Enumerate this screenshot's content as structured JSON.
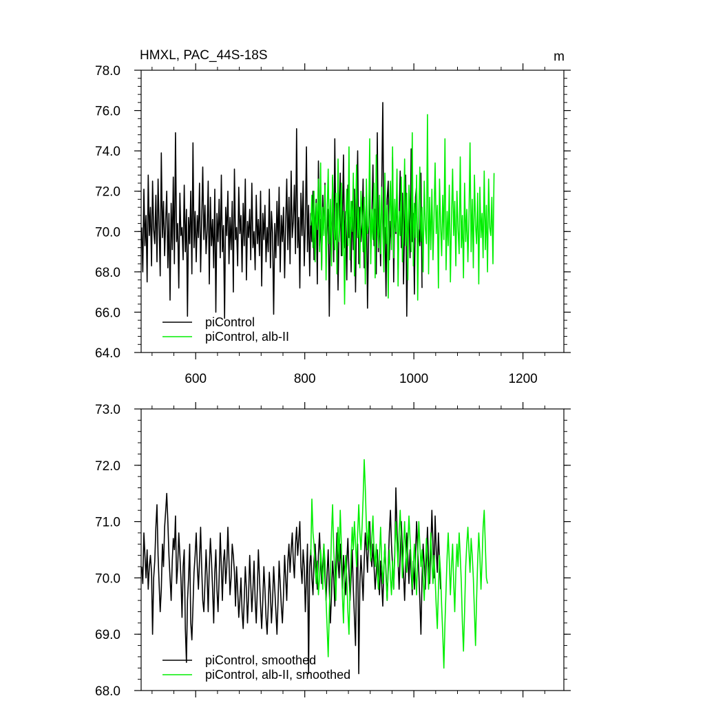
{
  "colors": {
    "piControl": "#000000",
    "albII": "#00ee00",
    "axis": "#000000",
    "background": "#ffffff"
  },
  "panels": [
    {
      "id": "top",
      "title": "HMXL, PAC_44S-18S",
      "units": "m",
      "xlim": [
        500,
        1275
      ],
      "ylim": [
        64,
        78
      ],
      "xticks": [
        {
          "value": 600,
          "label": "600"
        },
        {
          "value": 800,
          "label": "800"
        },
        {
          "value": 1000,
          "label": "1000"
        },
        {
          "value": 1200,
          "label": "1200"
        }
      ],
      "yticks": [
        {
          "value": 64,
          "label": "64.0"
        },
        {
          "value": 66,
          "label": "66.0"
        },
        {
          "value": 68,
          "label": "68.0"
        },
        {
          "value": 70,
          "label": "70.0"
        },
        {
          "value": 72,
          "label": "72.0"
        },
        {
          "value": 74,
          "label": "74.0"
        },
        {
          "value": 76,
          "label": "76.0"
        },
        {
          "value": 78,
          "label": "78.0"
        }
      ],
      "legend": [
        {
          "label": "piControl",
          "series": "piControl"
        },
        {
          "label": "piControl, alb-II",
          "series": "albII"
        }
      ]
    },
    {
      "id": "bottom",
      "title": "",
      "units": "",
      "xlim": [
        500,
        1275
      ],
      "ylim": [
        68,
        73
      ],
      "xticks": [
        {
          "value": 600,
          "label": ""
        },
        {
          "value": 800,
          "label": ""
        },
        {
          "value": 1000,
          "label": ""
        },
        {
          "value": 1200,
          "label": ""
        }
      ],
      "yticks": [
        {
          "value": 68,
          "label": "68.0"
        },
        {
          "value": 69,
          "label": "69.0"
        },
        {
          "value": 70,
          "label": "70.0"
        },
        {
          "value": 71,
          "label": "71.0"
        },
        {
          "value": 72,
          "label": "72.0"
        },
        {
          "value": 73,
          "label": "73.0"
        }
      ],
      "legend": [
        {
          "label": "piControl, smoothed",
          "series": "piControl"
        },
        {
          "label": "piControl, alb-II, smoothed",
          "series": "albII"
        }
      ]
    }
  ],
  "chart_data": [
    {
      "type": "line",
      "title": "HMXL, PAC_44S-18S",
      "units": "m",
      "xlim": [
        500,
        1275
      ],
      "ylim": [
        64,
        78
      ],
      "series": [
        {
          "name": "piControl",
          "x_start": 501,
          "x_step": 2,
          "values": [
            70.2,
            68.0,
            72.1,
            69.3,
            70.8,
            67.5,
            72.8,
            69.8,
            71.2,
            68.3,
            72.5,
            70.1,
            69.4,
            71.8,
            68.5,
            72.6,
            70.3,
            67.8,
            73.9,
            69.7,
            71.5,
            68.8,
            70.6,
            72.0,
            68.2,
            70.9,
            66.6,
            71.4,
            69.1,
            72.7,
            68.4,
            74.9,
            69.5,
            70.4,
            67.2,
            71.9,
            69.8,
            70.2,
            68.6,
            72.3,
            69.0,
            71.1,
            65.8,
            70.7,
            69.4,
            72.0,
            67.9,
            74.4,
            69.2,
            71.0,
            68.5,
            70.8,
            69.7,
            72.4,
            68.0,
            70.5,
            73.2,
            69.6,
            71.3,
            68.9,
            70.1,
            72.5,
            67.4,
            71.7,
            69.3,
            70.6,
            68.2,
            72.1,
            66.0,
            70.9,
            69.5,
            71.6,
            68.7,
            72.8,
            69.0,
            70.3,
            65.7,
            71.2,
            69.8,
            72.0,
            68.4,
            70.7,
            69.1,
            71.5,
            67.0,
            73.1,
            69.6,
            70.2,
            68.3,
            72.2,
            69.9,
            70.8,
            68.0,
            71.4,
            69.3,
            72.6,
            67.6,
            70.5,
            69.7,
            71.1,
            68.6,
            72.4,
            69.2,
            70.0,
            68.1,
            71.8,
            69.4,
            70.6,
            68.8,
            72.0,
            67.3,
            70.9,
            69.6,
            71.3,
            68.5,
            70.2,
            69.0,
            72.1,
            68.2,
            71.0,
            69.9,
            65.9,
            70.4,
            68.7,
            71.5,
            69.3,
            72.2,
            68.0,
            70.8,
            69.5,
            71.2,
            67.7,
            70.3,
            72.6,
            69.1,
            71.7,
            68.4,
            73.0,
            69.7,
            70.5,
            72.3,
            68.9,
            75.1,
            69.2,
            70.7,
            67.2,
            71.9,
            69.8,
            72.5,
            68.3,
            70.4,
            74.2,
            69.0,
            71.3,
            67.8,
            70.9,
            69.5,
            72.0,
            68.6,
            70.1,
            71.6,
            67.4,
            73.5,
            69.3,
            70.6,
            68.1,
            71.8,
            69.9,
            72.4,
            68.7,
            70.2,
            71.1,
            65.8,
            70.8,
            69.4,
            72.7,
            68.5,
            74.6,
            69.6,
            71.4,
            67.1,
            70.5,
            72.9,
            68.8,
            70.3,
            73.8,
            69.2,
            71.0,
            67.6,
            72.3,
            69.7,
            70.7,
            68.0,
            71.5,
            69.1,
            72.1,
            67.0,
            70.9,
            74.0,
            68.4,
            71.2,
            69.5,
            70.4,
            72.6,
            68.2,
            70.0,
            71.8,
            66.2,
            69.8,
            72.4,
            68.9,
            70.6,
            73.3,
            69.3,
            71.1,
            67.9,
            74.9,
            69.0,
            70.8,
            68.3,
            72.0,
            76.4,
            69.6,
            70.2,
            66.8,
            71.6,
            72.5,
            68.6,
            70.5,
            69.4,
            73.7,
            67.5,
            71.3,
            69.9,
            72.2,
            68.1,
            70.7,
            73.0,
            69.2,
            71.9,
            67.4,
            70.3,
            72.8,
            65.8,
            69.7,
            71.4,
            68.7,
            74.1,
            69.5,
            70.9,
            66.9,
            71.7,
            72.3,
            68.4,
            70.1,
            69.3,
            72.9,
            67.2
          ]
        },
        {
          "name": "piControl, alb-II",
          "x_start": 811,
          "x_step": 2,
          "values": [
            70.3,
            71.8,
            69.2,
            72.0,
            68.5,
            71.4,
            70.1,
            72.6,
            69.0,
            73.4,
            68.1,
            71.2,
            69.8,
            72.3,
            67.6,
            70.9,
            73.1,
            69.4,
            71.6,
            68.3,
            72.8,
            70.2,
            69.1,
            71.9,
            67.9,
            73.6,
            69.5,
            70.7,
            72.4,
            68.8,
            71.0,
            66.4,
            70.4,
            72.1,
            69.3,
            74.2,
            68.6,
            71.5,
            70.0,
            72.9,
            67.8,
            70.6,
            73.3,
            69.7,
            71.2,
            68.2,
            72.0,
            70.8,
            69.0,
            71.7,
            67.4,
            72.6,
            69.9,
            70.3,
            74.6,
            68.4,
            71.1,
            69.6,
            72.4,
            67.7,
            73.8,
            70.5,
            69.2,
            71.8,
            68.9,
            72.2,
            70.1,
            68.0,
            72.9,
            69.4,
            71.3,
            66.7,
            70.8,
            72.5,
            69.1,
            74.2,
            68.7,
            71.6,
            70.0,
            73.1,
            67.3,
            71.0,
            69.8,
            72.7,
            68.5,
            70.4,
            73.6,
            69.3,
            71.9,
            67.6,
            72.3,
            70.6,
            69.0,
            74.9,
            68.3,
            71.4,
            69.7,
            72.8,
            66.6,
            70.9,
            73.2,
            69.5,
            71.2,
            68.0,
            72.5,
            70.2,
            69.4,
            75.8,
            67.9,
            71.7,
            69.1,
            72.1,
            68.6,
            70.7,
            73.4,
            69.9,
            71.3,
            67.2,
            72.6,
            70.4,
            68.8,
            71.8,
            69.6,
            74.6,
            68.1,
            71.0,
            69.3,
            72.3,
            67.5,
            70.6,
            73.1,
            69.8,
            71.5,
            68.3,
            72.0,
            70.1,
            68.9,
            73.7,
            69.2,
            70.8,
            67.7,
            72.4,
            69.5,
            71.1,
            68.5,
            70.5,
            74.4,
            69.0,
            71.6,
            68.2,
            72.8,
            70.3,
            69.4,
            71.9,
            67.4,
            72.2,
            69.7,
            70.9,
            68.7,
            73.0,
            69.1,
            71.3,
            68.0,
            72.6,
            70.2,
            69.8,
            71.7,
            68.4,
            72.9
          ]
        }
      ]
    },
    {
      "type": "line",
      "title": "",
      "xlim": [
        500,
        1275
      ],
      "ylim": [
        68,
        73
      ],
      "series": [
        {
          "name": "piControl, smoothed",
          "x_start": 501,
          "x_step": 2,
          "values": [
            70.2,
            69.9,
            70.8,
            70.4,
            70.0,
            70.5,
            69.8,
            70.2,
            70.4,
            70.1,
            69.0,
            70.0,
            70.3,
            70.9,
            71.3,
            70.4,
            69.9,
            69.4,
            69.8,
            70.6,
            70.2,
            70.9,
            71.2,
            71.5,
            71.0,
            70.4,
            70.0,
            69.6,
            70.3,
            70.7,
            70.5,
            71.1,
            69.9,
            70.2,
            70.8,
            70.4,
            70.0,
            69.3,
            70.2,
            70.5,
            69.1,
            68.5,
            69.6,
            70.0,
            70.6,
            69.2,
            68.9,
            69.5,
            70.1,
            70.4,
            70.8,
            70.2,
            69.8,
            70.3,
            70.9,
            70.2,
            69.6,
            69.4,
            69.9,
            70.5,
            70.0,
            69.4,
            70.2,
            70.7,
            70.3,
            69.8,
            69.2,
            70.1,
            70.5,
            69.8,
            69.4,
            70.0,
            70.8,
            70.2,
            69.6,
            70.3,
            70.5,
            69.9,
            70.2,
            70.9,
            70.3,
            69.7,
            70.0,
            70.6,
            70.4,
            70.1,
            69.5,
            70.2,
            69.8,
            69.3,
            69.6,
            70.0,
            69.4,
            69.1,
            69.6,
            70.2,
            69.8,
            69.2,
            69.7,
            70.4,
            69.9,
            69.4,
            69.8,
            70.3,
            69.6,
            69.2,
            69.8,
            70.5,
            70.0,
            69.5,
            69.1,
            69.6,
            70.2,
            69.8,
            69.3,
            69.0,
            69.5,
            70.1,
            69.7,
            69.2,
            69.6,
            70.2,
            69.8,
            69.4,
            69.0,
            69.6,
            70.3,
            69.9,
            69.5,
            69.2,
            69.7,
            70.4,
            70.0,
            69.6,
            70.3,
            70.6,
            70.1,
            70.5,
            70.8,
            70.3,
            70.0,
            70.6,
            70.9,
            70.4,
            70.7,
            71.0,
            70.2,
            69.9,
            70.5,
            70.2,
            69.4,
            70.0,
            70.6,
            68.3,
            70.2,
            70.5,
            70.0,
            69.7,
            70.3,
            70.6,
            70.2,
            69.8,
            70.4,
            70.8,
            70.3,
            69.9,
            70.2,
            70.6,
            70.0,
            69.6,
            70.1,
            70.5,
            69.8,
            69.2,
            69.7,
            70.3,
            70.0,
            69.5,
            70.2,
            70.8,
            70.3,
            70.0,
            70.6,
            70.2,
            69.8,
            70.4,
            70.0,
            69.7,
            70.3,
            70.7,
            70.1,
            69.6,
            70.0,
            70.5,
            69.8,
            69.3,
            68.8,
            70.2,
            70.6,
            68.3,
            69.9,
            70.4,
            70.0,
            69.6,
            70.3,
            70.8,
            70.5,
            70.1,
            70.7,
            71.0,
            70.4,
            70.2,
            70.6,
            70.2,
            69.8,
            70.1,
            70.5,
            70.0,
            69.7,
            70.3,
            69.9,
            69.5,
            70.2,
            70.6,
            70.1,
            69.6,
            70.2,
            70.8,
            71.2,
            70.6,
            70.2,
            69.8,
            70.4,
            71.6,
            70.9,
            70.3,
            69.8,
            70.4,
            71.0,
            70.5,
            70.1,
            69.6,
            70.2,
            70.8,
            70.4,
            69.9,
            70.5,
            70.1,
            69.7,
            70.3,
            69.8,
            70.4,
            71.0,
            70.5,
            70.1,
            69.6,
            69.0,
            70.0,
            70.6,
            70.2,
            69.8,
            70.4,
            70.9,
            70.3,
            69.9,
            70.5,
            71.2,
            70.6,
            70.0,
            71.1,
            70.5,
            70.1,
            70.8,
            70.3,
            69.8
          ]
        },
        {
          "name": "piControl, alb-II, smoothed",
          "x_start": 811,
          "x_step": 2,
          "values": [
            70.4,
            71.4,
            70.8,
            70.6,
            70.2,
            69.9,
            70.3,
            69.7,
            70.0,
            70.5,
            70.2,
            69.8,
            70.6,
            70.3,
            69.6,
            69.1,
            68.6,
            69.4,
            70.0,
            70.8,
            71.3,
            70.5,
            70.1,
            69.6,
            70.4,
            70.9,
            70.3,
            71.2,
            70.6,
            69.7,
            69.2,
            70.0,
            70.4,
            70.0,
            69.4,
            69.0,
            69.8,
            70.4,
            70.9,
            70.5,
            71.0,
            70.6,
            70.2,
            70.8,
            71.3,
            70.8,
            70.5,
            70.9,
            71.4,
            72.1,
            71.6,
            70.9,
            70.5,
            71.0,
            70.6,
            70.3,
            70.7,
            71.1,
            70.5,
            70.2,
            70.6,
            70.1,
            69.8,
            70.4,
            70.9,
            70.3,
            69.9,
            70.2,
            70.6,
            70.0,
            69.6,
            70.1,
            70.5,
            70.0,
            69.7,
            70.3,
            69.8,
            70.5,
            71.0,
            70.6,
            70.2,
            70.8,
            71.2,
            70.6,
            70.0,
            70.5,
            71.0,
            70.5,
            70.1,
            70.6,
            71.1,
            70.7,
            70.3,
            69.8,
            70.2,
            70.6,
            70.1,
            69.7,
            70.4,
            71.0,
            70.6,
            70.2,
            70.5,
            70.0,
            69.6,
            70.2,
            70.7,
            70.3,
            69.8,
            70.2,
            70.8,
            70.3,
            69.9,
            70.4,
            70.0,
            69.5,
            69.1,
            69.8,
            70.4,
            70.1,
            69.5,
            69.0,
            68.4,
            69.2,
            69.8,
            70.4,
            70.8,
            70.3,
            69.7,
            70.2,
            70.6,
            69.9,
            69.4,
            70.1,
            70.6,
            70.2,
            70.8,
            70.4,
            69.9,
            69.2,
            68.7,
            69.4,
            70.2,
            70.6,
            70.9,
            70.5,
            70.1,
            70.7,
            70.4,
            70.0,
            69.4,
            68.8,
            69.6,
            70.3,
            70.8,
            70.4,
            69.8,
            70.3,
            70.9,
            71.2,
            70.6,
            70.0,
            69.9
          ]
        }
      ]
    }
  ]
}
